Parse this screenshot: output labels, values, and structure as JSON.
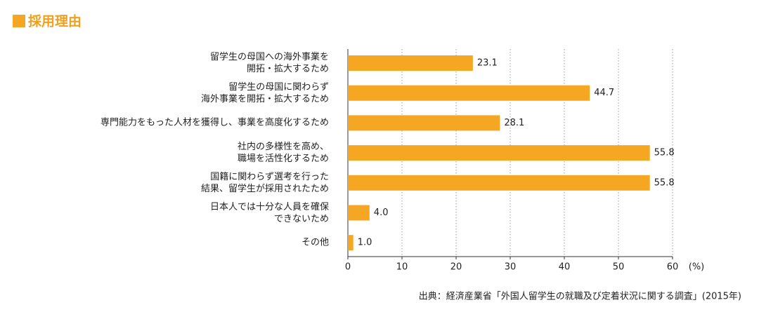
{
  "chart_data": {
    "type": "barh",
    "title": "採用理由",
    "categories": [
      "留学生の母国への海外事業を\n開拓・拡大するため",
      "留学生の母国に関わらず\n海外事業を開拓・拡大するため",
      "専門能力をもった人材を獲得し、事業を高度化するため",
      "社内の多様性を高め、\n職場を活性化するため",
      "国籍に関わらず選考を行った\n結果、留学生が採用されたため",
      "日本人では十分な人員を確保\nできないため",
      "その他"
    ],
    "values": [
      23.1,
      44.7,
      28.1,
      55.8,
      55.8,
      4,
      1
    ],
    "value_labels": [
      "23.1",
      "44.7",
      "28.1",
      "55.8",
      "55.8",
      "4.0",
      "1.0"
    ],
    "color": "#f5a623",
    "xlim": [
      0,
      60
    ],
    "xticks": [
      0,
      10,
      20,
      30,
      40,
      50,
      60
    ],
    "xlabel": "(%)",
    "grid": true,
    "source": "出典：経済産業省「外国人留学生の就職及び定着状況に関する調査」(2015年)"
  }
}
